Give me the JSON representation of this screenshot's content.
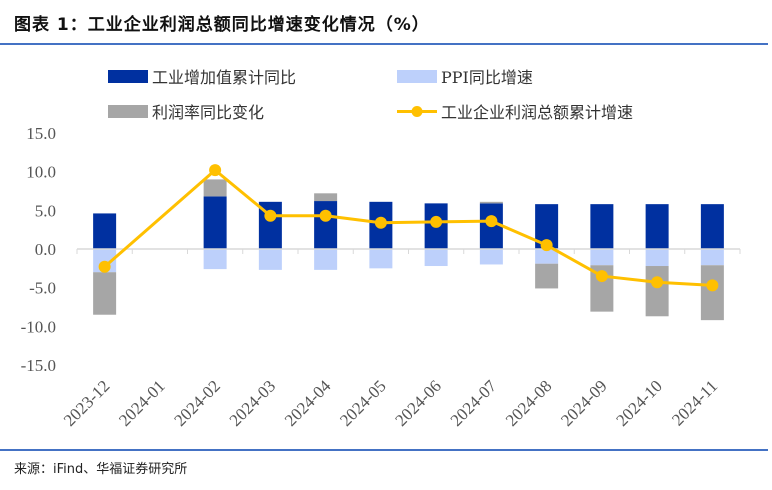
{
  "header": {
    "title": "图表 1：工业企业利润总额同比增速变化情况（%）"
  },
  "footer": {
    "source": "来源：iFind、华福证券研究所"
  },
  "colors": {
    "industrial_value_added": "#0030a0",
    "ppi": "#bdd0fb",
    "profit_margin": "#a6a6a6",
    "profit_growth": "#ffc000",
    "axis": "#d9d9d9",
    "rule": "#4472c4"
  },
  "chart_data": {
    "type": "bar",
    "title": "工业企业利润总额同比增速变化情况（%）",
    "xlabel": "",
    "ylabel": "",
    "ylim": [
      -15,
      15
    ],
    "yticks": [
      15,
      10,
      5,
      0,
      -5,
      -10,
      -15
    ],
    "ytick_labels": [
      "15.0",
      "10.0",
      "5.0",
      "0.0",
      "-5.0",
      "-10.0",
      "-15.0"
    ],
    "grid": false,
    "legend_position": "top",
    "stacked": true,
    "categories": [
      "2023-12",
      "2024-01",
      "2024-02",
      "2024-03",
      "2024-04",
      "2024-05",
      "2024-06",
      "2024-07",
      "2024-08",
      "2024-09",
      "2024-10",
      "2024-11"
    ],
    "series": [
      {
        "name": "工业增加值累计同比",
        "type": "bar",
        "color_key": "industrial_value_added",
        "values": [
          4.6,
          null,
          6.8,
          6.1,
          6.2,
          6.1,
          5.9,
          5.9,
          5.8,
          5.8,
          5.8,
          5.8
        ]
      },
      {
        "name": "PPI同比增速",
        "type": "bar",
        "color_key": "ppi",
        "values": [
          -3.0,
          null,
          -2.6,
          -2.7,
          -2.7,
          -2.5,
          -2.2,
          -2.0,
          -1.9,
          -2.1,
          -2.2,
          -2.1
        ]
      },
      {
        "name": "利润率同比变化",
        "type": "bar",
        "color_key": "profit_margin",
        "values": [
          -5.5,
          null,
          2.2,
          0.0,
          1.0,
          0.0,
          0.0,
          0.2,
          -3.2,
          -6.0,
          -6.5,
          -7.1
        ]
      },
      {
        "name": "工业企业利润总额累计增速",
        "type": "line",
        "color_key": "profit_growth",
        "values": [
          -2.3,
          null,
          10.2,
          4.3,
          4.3,
          3.4,
          3.5,
          3.6,
          0.5,
          -3.5,
          -4.3,
          -4.7
        ]
      }
    ]
  }
}
